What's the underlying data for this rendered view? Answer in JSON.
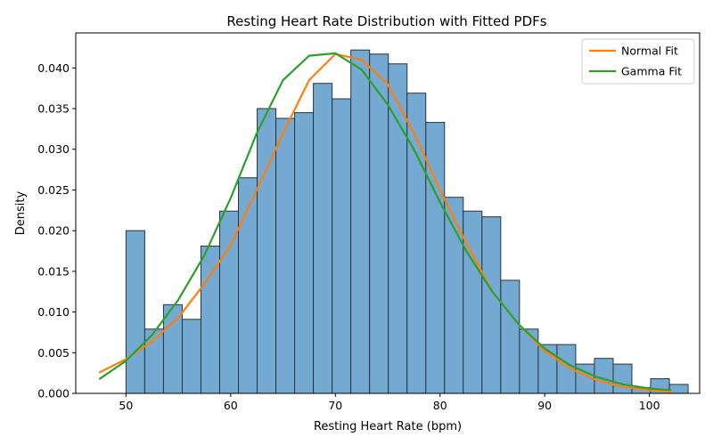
{
  "chart_data": {
    "type": "bar",
    "title": "Resting Heart Rate Distribution with Fitted PDFs",
    "xlabel": "Resting Heart Rate (bpm)",
    "ylabel": "Density",
    "xlim": [
      45.2,
      104.8
    ],
    "ylim": [
      0,
      0.0443
    ],
    "x_ticks": [
      50,
      60,
      70,
      80,
      90,
      100
    ],
    "x_tick_labels": [
      "50",
      "60",
      "70",
      "80",
      "90",
      "100"
    ],
    "y_ticks": [
      0,
      0.005,
      0.01,
      0.015,
      0.02,
      0.025,
      0.03,
      0.035,
      0.04
    ],
    "y_tick_labels": [
      "0.000",
      "0.005",
      "0.010",
      "0.015",
      "0.020",
      "0.025",
      "0.030",
      "0.035",
      "0.040"
    ],
    "legend_position": "top-right",
    "grid": false,
    "histogram": {
      "bin_start": 50,
      "bin_width": 1.79,
      "values": [
        0.02,
        0.0079,
        0.0109,
        0.0091,
        0.0181,
        0.0224,
        0.0265,
        0.035,
        0.0338,
        0.0345,
        0.0381,
        0.0362,
        0.0422,
        0.0417,
        0.0405,
        0.0369,
        0.0333,
        0.0241,
        0.0224,
        0.0217,
        0.0139,
        0.0079,
        0.006,
        0.006,
        0.0036,
        0.0043,
        0.0036,
        0.0007,
        0.0018,
        0.0011
      ],
      "color": "#74aad1",
      "edge_color": "#2a3440"
    },
    "series": [
      {
        "name": "Normal Fit",
        "color": "#ff7f0e",
        "x": [
          47.5,
          50,
          52.5,
          55,
          57.5,
          60,
          62.5,
          65,
          67.5,
          70,
          72.5,
          75,
          77.5,
          80,
          82.5,
          85,
          87.5,
          90,
          92.5,
          95,
          97.5,
          100,
          102
        ],
        "y": [
          0.0026,
          0.0042,
          0.0064,
          0.0093,
          0.0135,
          0.0182,
          0.025,
          0.032,
          0.0385,
          0.0417,
          0.041,
          0.038,
          0.032,
          0.025,
          0.0185,
          0.0125,
          0.0085,
          0.0052,
          0.003,
          0.0016,
          0.0008,
          0.0004,
          0.0002
        ]
      },
      {
        "name": "Gamma Fit",
        "color": "#2ca02c",
        "x": [
          47.5,
          50,
          52.5,
          55,
          57.5,
          60,
          62.5,
          65,
          67.5,
          70,
          72.5,
          75,
          77.5,
          80,
          82.5,
          85,
          87.5,
          90,
          92.5,
          95,
          97.5,
          100,
          102
        ],
        "y": [
          0.0018,
          0.004,
          0.0072,
          0.0115,
          0.017,
          0.024,
          0.032,
          0.0385,
          0.0415,
          0.0418,
          0.0398,
          0.0355,
          0.03,
          0.0235,
          0.0175,
          0.0125,
          0.0085,
          0.0055,
          0.0034,
          0.002,
          0.0011,
          0.0006,
          0.0004
        ]
      }
    ]
  }
}
